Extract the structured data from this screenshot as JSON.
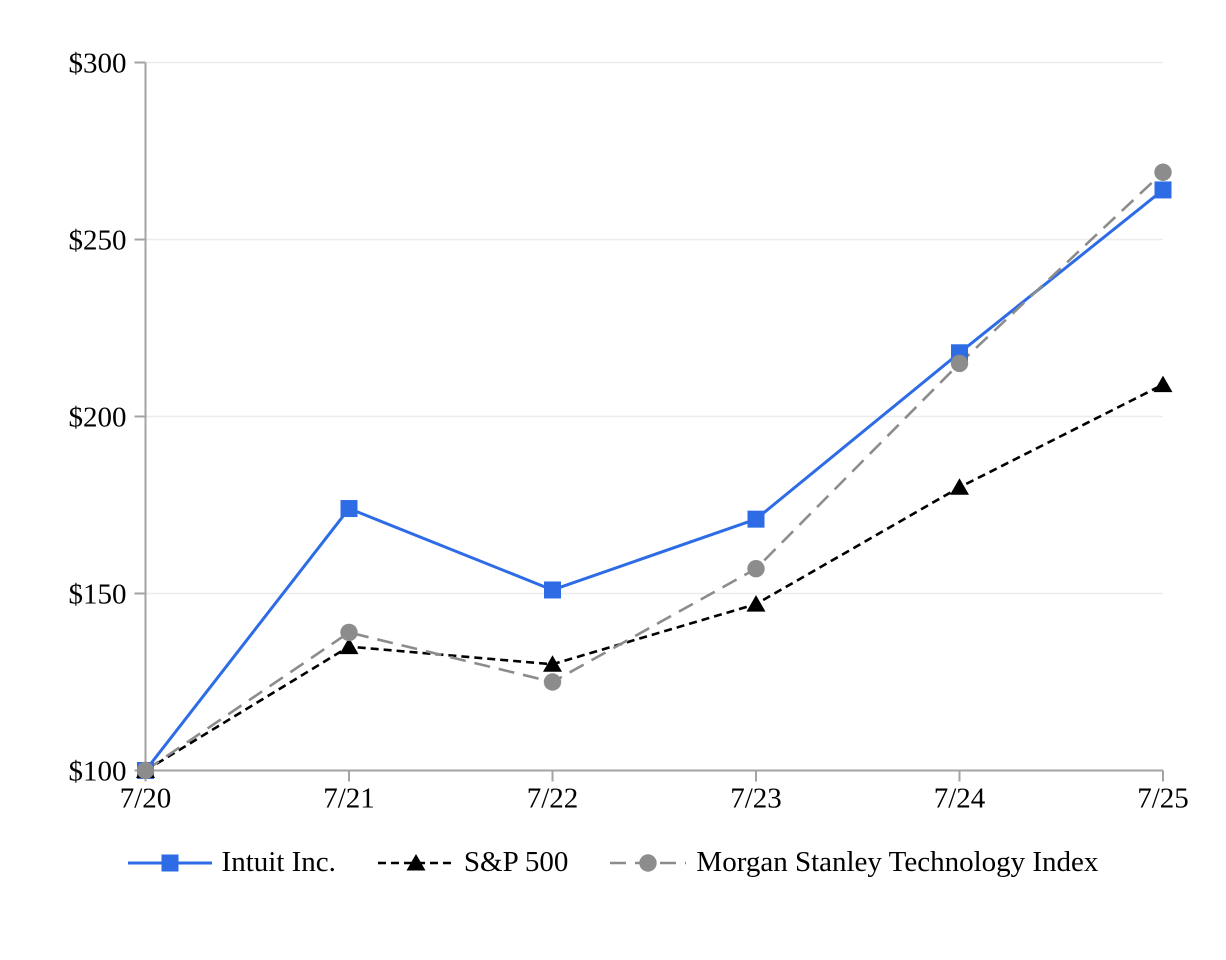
{
  "chart_data": {
    "type": "line",
    "title": "",
    "xlabel": "",
    "ylabel": "",
    "x": [
      "7/20",
      "7/21",
      "7/22",
      "7/23",
      "7/24",
      "7/25"
    ],
    "y_axis": {
      "min": 100,
      "max": 300,
      "step": 50,
      "tick_prefix": "$",
      "tick_labels": [
        "$100",
        "$150",
        "$200",
        "$250",
        "$300"
      ]
    },
    "grid": "horizontal",
    "legend_position": "bottom",
    "series": [
      {
        "name": "Intuit Inc.",
        "color": "#2e6ce5",
        "line_style": "solid",
        "marker": "square",
        "values": [
          100,
          174,
          151,
          171,
          218,
          264
        ]
      },
      {
        "name": "S&P 500",
        "color": "#000000",
        "line_style": "dashed",
        "marker": "triangle",
        "values": [
          100,
          135,
          130,
          147,
          180,
          209
        ]
      },
      {
        "name": "Morgan Stanley Technology Index",
        "color": "#8c8c8c",
        "line_style": "long-dash",
        "marker": "circle",
        "values": [
          100,
          139,
          125,
          157,
          215,
          269
        ]
      }
    ],
    "colors": {
      "axis": "#a3a3a3",
      "gridline": "#ececec",
      "text": "#000000"
    }
  }
}
